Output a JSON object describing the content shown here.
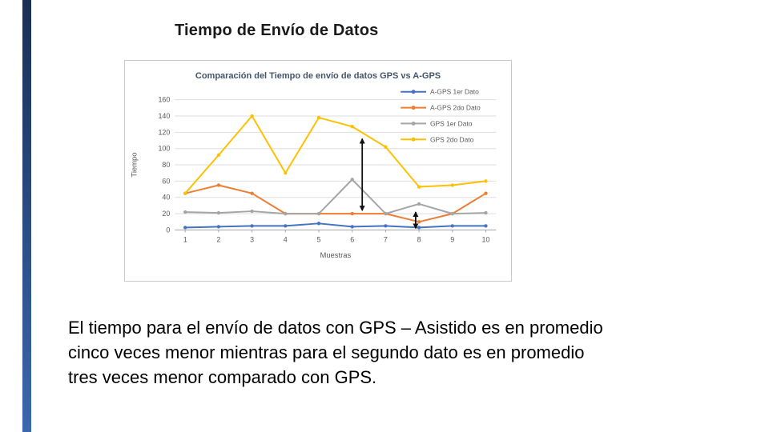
{
  "slide": {
    "title": "Tiempo de Envío de Datos",
    "body_lines": [
      "El tiempo para el envío de datos con GPS – Asistido es en promedio",
      "cinco veces menor mientras para el segundo dato es en promedio",
      "tres veces menor comparado con GPS."
    ],
    "accent_bar_top_color": "#1b2e55",
    "accent_bar_bottom_color": "#3a68ae"
  },
  "chart_data": {
    "type": "line",
    "title": "Comparación del Tiempo de envío de datos GPS vs A-GPS",
    "xlabel": "Muestras",
    "ylabel": "Tiempo",
    "x": [
      1,
      2,
      3,
      4,
      5,
      6,
      7,
      8,
      9,
      10
    ],
    "ylim": [
      0,
      160
    ],
    "yticks": [
      0,
      20,
      40,
      60,
      80,
      100,
      120,
      140,
      160
    ],
    "grid": true,
    "legend_position": "top-right-overlay",
    "series": [
      {
        "name": "A-GPS 1er Dato",
        "color": "#4472c4",
        "values": [
          3,
          4,
          5,
          5,
          8,
          4,
          5,
          3,
          5,
          5
        ]
      },
      {
        "name": "A-GPS 2do Dato",
        "color": "#ed7d31",
        "values": [
          45,
          55,
          45,
          20,
          20,
          20,
          20,
          10,
          20,
          45
        ]
      },
      {
        "name": "GPS 1er Dato",
        "color": "#a5a5a5",
        "values": [
          22,
          21,
          23,
          20,
          20,
          62,
          20,
          32,
          20,
          21
        ]
      },
      {
        "name": "GPS 2do Dato",
        "color": "#ffc000",
        "values": [
          45,
          92,
          140,
          70,
          138,
          127,
          102,
          53,
          55,
          60
        ]
      }
    ],
    "annotations": [
      {
        "type": "double-arrow",
        "x": 6.3,
        "y1": 24,
        "y2": 112,
        "color": "#111111"
      },
      {
        "type": "double-arrow",
        "x": 7.9,
        "y1": 2,
        "y2": 22,
        "color": "#111111"
      }
    ],
    "colors": {
      "gridline": "#dedede",
      "axis": "#a6a6a6",
      "tick_text": "#595959",
      "legend_text": "#595959"
    }
  }
}
